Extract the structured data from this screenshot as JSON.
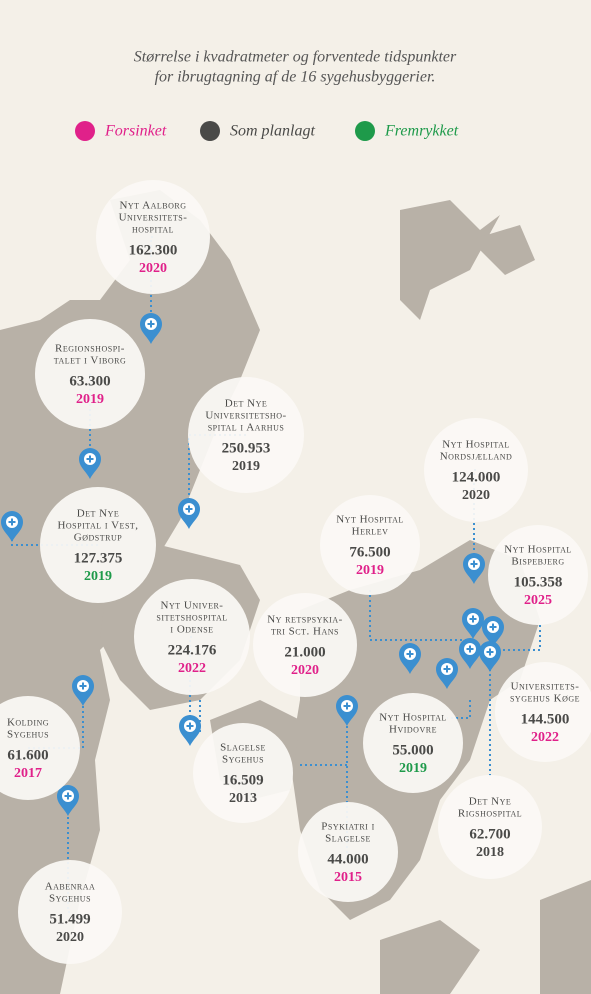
{
  "subtitle": [
    "Størrelse i kvadratmeter og forventede tidspunkter",
    "for ibrugtagning af de 16 sygehusbyggerier."
  ],
  "legend": [
    {
      "label": "Forsinket",
      "color": "#e0218a"
    },
    {
      "label": "Som planlagt",
      "color": "#4a4a48"
    },
    {
      "label": "Fremrykket",
      "color": "#1e9a4a"
    }
  ],
  "hospitals": [
    {
      "name": [
        "Nyt Aalborg",
        "Universitets-",
        "hospital"
      ],
      "area": "162.300",
      "year": 2020,
      "year_color": "#e0218a"
    },
    {
      "name": [
        "Regionshospi-",
        "talet i Viborg"
      ],
      "area": "63.300",
      "year": 2019,
      "year_color": "#e0218a"
    },
    {
      "name": [
        "Det Nye",
        "Universitetsho-",
        "spital i Aarhus"
      ],
      "area": "250.953",
      "year": 2019,
      "year_color": "#4a4a48"
    },
    {
      "name": [
        "Nyt Hospital",
        "Nordsjælland"
      ],
      "area": "124.000",
      "year": 2020,
      "year_color": "#4a4a48"
    },
    {
      "name": [
        "Det Nye",
        "Hospital i Vest,",
        "Gødstrup"
      ],
      "area": "127.375",
      "year": 2019,
      "year_color": "#1e9a4a"
    },
    {
      "name": [
        "Nyt Hospital",
        "Herlev"
      ],
      "area": "76.500",
      "year": 2019,
      "year_color": "#e0218a"
    },
    {
      "name": [
        "Nyt Hospital",
        "Bispebjerg"
      ],
      "area": "105.358",
      "year": 2025,
      "year_color": "#e0218a"
    },
    {
      "name": [
        "Nyt Univer-",
        "sitetshospital",
        "i Odense"
      ],
      "area": "224.176",
      "year": 2022,
      "year_color": "#e0218a"
    },
    {
      "name": [
        "Ny retspsykia-",
        "tri Sct. Hans"
      ],
      "area": "21.000",
      "year": 2020,
      "year_color": "#e0218a"
    },
    {
      "name": [
        "Kolding",
        "Sygehus"
      ],
      "area": "61.600",
      "year": 2017,
      "year_color": "#e0218a"
    },
    {
      "name": [
        "Nyt Hospital",
        "Hvidovre"
      ],
      "area": "55.000",
      "year": 2019,
      "year_color": "#1e9a4a"
    },
    {
      "name": [
        "Universitets-",
        "sygehus Køge"
      ],
      "area": "144.500",
      "year": 2022,
      "year_color": "#e0218a"
    },
    {
      "name": [
        "Slagelse",
        "Sygehus"
      ],
      "area": "16.509",
      "year": 2013,
      "year_color": "#4a4a48"
    },
    {
      "name": [
        "Det Nye",
        "Rigshospital"
      ],
      "area": "62.700",
      "year": 2018,
      "year_color": "#4a4a48"
    },
    {
      "name": [
        "Psykiatri i",
        "Slagelse"
      ],
      "area": "44.000",
      "year": 2015,
      "year_color": "#e0218a"
    },
    {
      "name": [
        "Aabenraa",
        "Sygehus"
      ],
      "area": "51.499",
      "year": 2020,
      "year_color": "#4a4a48"
    }
  ]
}
